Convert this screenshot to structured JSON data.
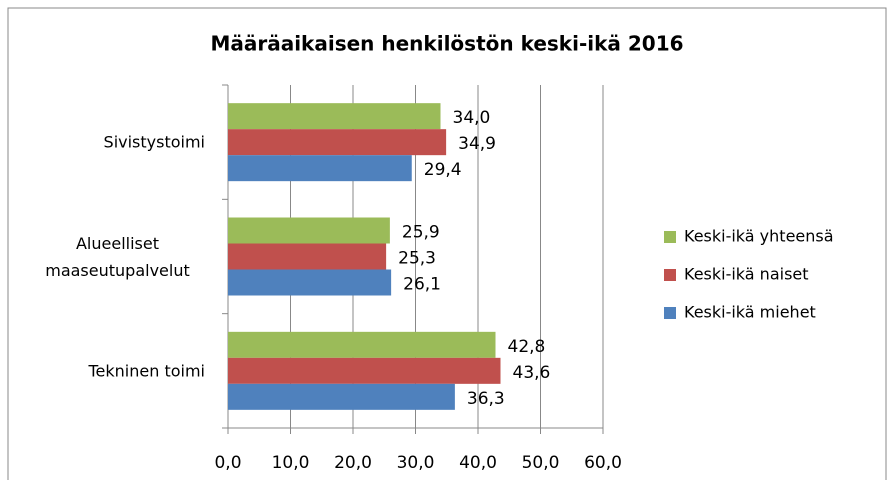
{
  "chart_data": {
    "type": "hbar",
    "title": "Määräaikaisen henkilöstön keski-ikä 2016",
    "categories": [
      "Sivistystoimi",
      "Alueelliset maaseutupalvelut",
      "Tekninen toimi"
    ],
    "series": [
      {
        "name": "Keski-ikä yhteensä",
        "color": "#9bbb59",
        "values": [
          34.0,
          25.9,
          42.8
        ],
        "value_labels": [
          "34,0",
          "25,9",
          "42,8"
        ]
      },
      {
        "name": "Keski-ikä naiset",
        "color": "#c0504d",
        "values": [
          34.9,
          25.3,
          43.6
        ],
        "value_labels": [
          "34,9",
          "25,3",
          "43,6"
        ]
      },
      {
        "name": "Keski-ikä miehet",
        "color": "#4f81bd",
        "values": [
          29.4,
          26.1,
          36.3
        ],
        "value_labels": [
          "29,4",
          "26,1",
          "36,3"
        ]
      }
    ],
    "xlim": [
      0,
      60
    ],
    "xticks": [
      {
        "value": 0,
        "label": "0,0"
      },
      {
        "value": 10,
        "label": "10,0"
      },
      {
        "value": 20,
        "label": "20,0"
      },
      {
        "value": 30,
        "label": "30,0"
      },
      {
        "value": 40,
        "label": "40,0"
      },
      {
        "value": 50,
        "label": "50,0"
      },
      {
        "value": 60,
        "label": "60,0"
      }
    ],
    "grid": true,
    "legend": "right"
  }
}
